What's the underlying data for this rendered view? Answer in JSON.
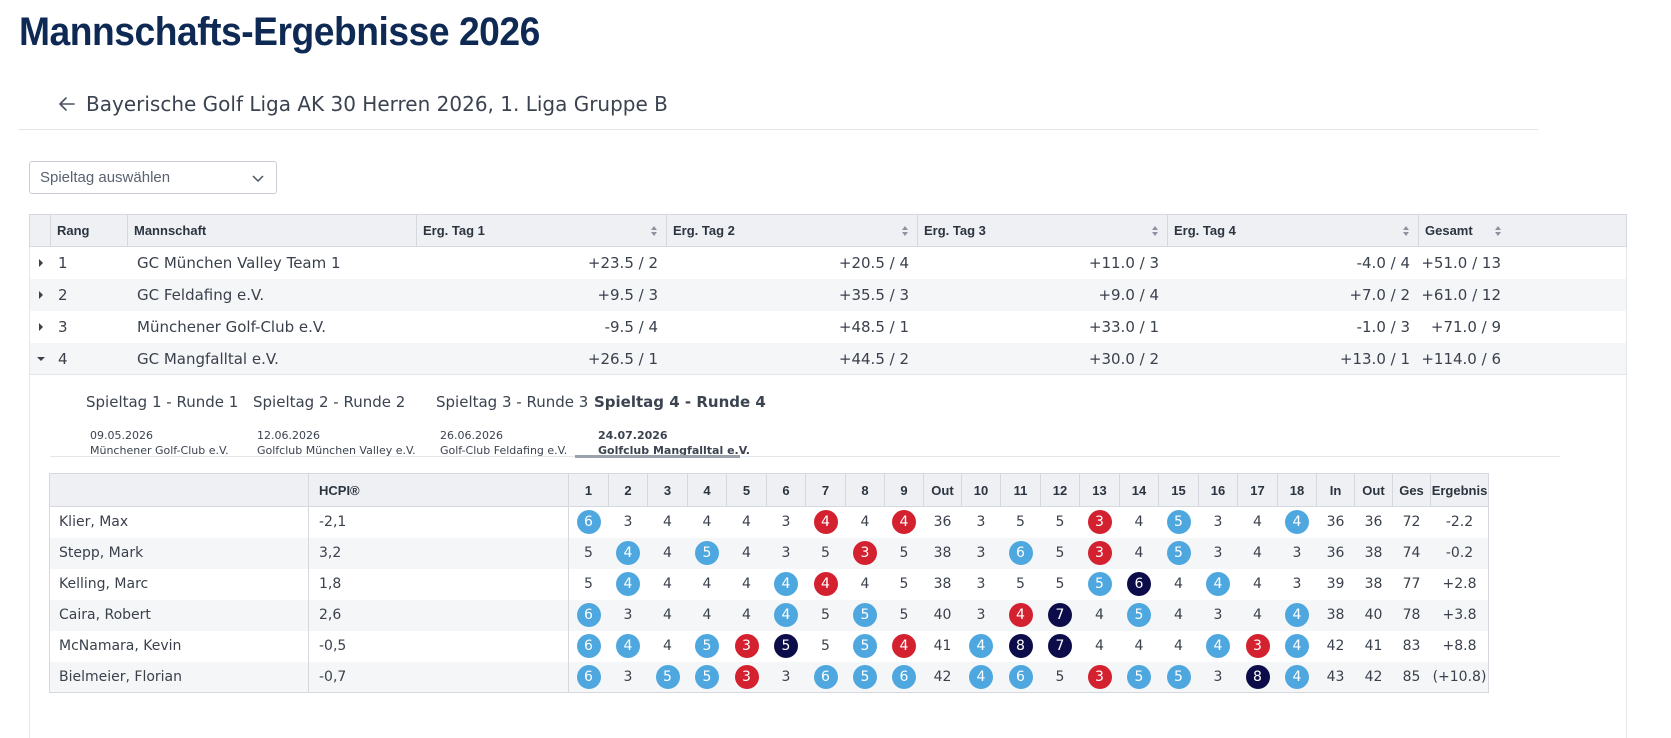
{
  "page": {
    "title": "Mannschafts-Ergebnisse 2026",
    "league": "Bayerische Golf Liga AK 30 Herren 2026, 1. Liga Gruppe B"
  },
  "select": {
    "placeholder": "Spieltag auswählen"
  },
  "table": {
    "headers": [
      "Rang",
      "Mannschaft",
      "Erg. Tag 1",
      "Erg. Tag 2",
      "Erg. Tag 3",
      "Erg. Tag 4",
      "Gesamt"
    ],
    "rows": [
      {
        "rank": "1",
        "team": "GC München Valley Team 1",
        "d1": "+23.5 / 2",
        "d2": "+20.5 / 4",
        "d3": "+11.0 / 3",
        "d4": "-4.0 / 4",
        "total": "+51.0 / 13",
        "expanded": false
      },
      {
        "rank": "2",
        "team": "GC Feldafing e.V.",
        "d1": "+9.5 / 3",
        "d2": "+35.5 / 3",
        "d3": "+9.0 / 4",
        "d4": "+7.0 / 2",
        "total": "+61.0 / 12",
        "expanded": false
      },
      {
        "rank": "3",
        "team": "Münchener Golf-Club e.V.",
        "d1": "-9.5 / 4",
        "d2": "+48.5 / 1",
        "d3": "+33.0 / 1",
        "d4": "-1.0 / 3",
        "total": "+71.0 / 9",
        "expanded": false
      },
      {
        "rank": "4",
        "team": "GC Mangfalltal e.V.",
        "d1": "+26.5 / 1",
        "d2": "+44.5 / 2",
        "d3": "+30.0 / 2",
        "d4": "+13.0 / 1",
        "total": "+114.0 / 6",
        "expanded": true
      }
    ]
  },
  "tabs": [
    {
      "label": "Spieltag 1 - Runde 1",
      "date": "09.05.2026",
      "venue": "Münchener Golf-Club e.V.",
      "active": false
    },
    {
      "label": "Spieltag 2 - Runde 2",
      "date": "12.06.2026",
      "venue": "Golfclub München Valley e.V.",
      "active": false
    },
    {
      "label": "Spieltag 3 - Runde 3",
      "date": "26.06.2026",
      "venue": "Golf-Club Feldafing e.V.",
      "active": false
    },
    {
      "label": "Spieltag 4 - Runde 4",
      "date": "24.07.2026",
      "venue": "Golfclub Mangfalltal e.V.",
      "active": true
    }
  ],
  "scorecard": {
    "headers": [
      "",
      "HCPI®",
      "1",
      "2",
      "3",
      "4",
      "5",
      "6",
      "7",
      "8",
      "9",
      "Out",
      "10",
      "11",
      "12",
      "13",
      "14",
      "15",
      "16",
      "17",
      "18",
      "In",
      "Out",
      "Ges",
      "Ergebnis"
    ],
    "legend": {
      "birdie_color": "#4ea8df",
      "bogey_color": "#d3212f",
      "double_color": "#0d0c4a"
    },
    "players": [
      {
        "name": "Klier, Max",
        "hcp": "-2,1",
        "holes": [
          [
            "6",
            "b"
          ],
          [
            "3",
            ""
          ],
          [
            "4",
            ""
          ],
          [
            "4",
            ""
          ],
          [
            "4",
            ""
          ],
          [
            "3",
            ""
          ],
          [
            "4",
            "r"
          ],
          [
            "4",
            ""
          ],
          [
            "4",
            "r"
          ]
        ],
        "out": "36",
        "holes2": [
          [
            "3",
            ""
          ],
          [
            "5",
            ""
          ],
          [
            "5",
            ""
          ],
          [
            "3",
            "r"
          ],
          [
            "4",
            ""
          ],
          [
            "5",
            "b"
          ],
          [
            "3",
            ""
          ],
          [
            "4",
            ""
          ],
          [
            "4",
            "b"
          ]
        ],
        "in": "36",
        "out2": "36",
        "total": "72",
        "result": "-2.2"
      },
      {
        "name": "Stepp, Mark",
        "hcp": "3,2",
        "holes": [
          [
            "5",
            ""
          ],
          [
            "4",
            "b"
          ],
          [
            "4",
            ""
          ],
          [
            "5",
            "b"
          ],
          [
            "4",
            ""
          ],
          [
            "3",
            ""
          ],
          [
            "5",
            ""
          ],
          [
            "3",
            "r"
          ],
          [
            "5",
            ""
          ]
        ],
        "out": "38",
        "holes2": [
          [
            "3",
            ""
          ],
          [
            "6",
            "b"
          ],
          [
            "5",
            ""
          ],
          [
            "3",
            "r"
          ],
          [
            "4",
            ""
          ],
          [
            "5",
            "b"
          ],
          [
            "3",
            ""
          ],
          [
            "4",
            ""
          ],
          [
            "3",
            ""
          ]
        ],
        "in": "36",
        "out2": "38",
        "total": "74",
        "result": "-0.2"
      },
      {
        "name": "Kelling, Marc",
        "hcp": "1,8",
        "holes": [
          [
            "5",
            ""
          ],
          [
            "4",
            "b"
          ],
          [
            "4",
            ""
          ],
          [
            "4",
            ""
          ],
          [
            "4",
            ""
          ],
          [
            "4",
            "b"
          ],
          [
            "4",
            "r"
          ],
          [
            "4",
            ""
          ],
          [
            "5",
            ""
          ]
        ],
        "out": "38",
        "holes2": [
          [
            "3",
            ""
          ],
          [
            "5",
            ""
          ],
          [
            "5",
            ""
          ],
          [
            "5",
            "b"
          ],
          [
            "6",
            "d"
          ],
          [
            "4",
            ""
          ],
          [
            "4",
            "b"
          ],
          [
            "4",
            ""
          ],
          [
            "3",
            ""
          ]
        ],
        "in": "39",
        "out2": "38",
        "total": "77",
        "result": "+2.8"
      },
      {
        "name": "Caira, Robert",
        "hcp": "2,6",
        "holes": [
          [
            "6",
            "b"
          ],
          [
            "3",
            ""
          ],
          [
            "4",
            ""
          ],
          [
            "4",
            ""
          ],
          [
            "4",
            ""
          ],
          [
            "4",
            "b"
          ],
          [
            "5",
            ""
          ],
          [
            "5",
            "b"
          ],
          [
            "5",
            ""
          ]
        ],
        "out": "40",
        "holes2": [
          [
            "3",
            ""
          ],
          [
            "4",
            "r"
          ],
          [
            "7",
            "d"
          ],
          [
            "4",
            ""
          ],
          [
            "5",
            "b"
          ],
          [
            "4",
            ""
          ],
          [
            "3",
            ""
          ],
          [
            "4",
            ""
          ],
          [
            "4",
            "b"
          ]
        ],
        "in": "38",
        "out2": "40",
        "total": "78",
        "result": "+3.8"
      },
      {
        "name": "McNamara, Kevin",
        "hcp": "-0,5",
        "holes": [
          [
            "6",
            "b"
          ],
          [
            "4",
            "b"
          ],
          [
            "4",
            ""
          ],
          [
            "5",
            "b"
          ],
          [
            "3",
            "r"
          ],
          [
            "5",
            "d"
          ],
          [
            "5",
            ""
          ],
          [
            "5",
            "b"
          ],
          [
            "4",
            "r"
          ]
        ],
        "out": "41",
        "holes2": [
          [
            "4",
            "b"
          ],
          [
            "8",
            "d"
          ],
          [
            "7",
            "d"
          ],
          [
            "4",
            ""
          ],
          [
            "4",
            ""
          ],
          [
            "4",
            ""
          ],
          [
            "4",
            "b"
          ],
          [
            "3",
            "r"
          ],
          [
            "4",
            "b"
          ]
        ],
        "in": "42",
        "out2": "41",
        "total": "83",
        "result": "+8.8"
      },
      {
        "name": "Bielmeier, Florian",
        "hcp": "-0,7",
        "holes": [
          [
            "6",
            "b"
          ],
          [
            "3",
            ""
          ],
          [
            "5",
            "b"
          ],
          [
            "5",
            "b"
          ],
          [
            "3",
            "r"
          ],
          [
            "3",
            ""
          ],
          [
            "6",
            "b"
          ],
          [
            "5",
            "b"
          ],
          [
            "6",
            "b"
          ]
        ],
        "out": "42",
        "holes2": [
          [
            "4",
            "b"
          ],
          [
            "6",
            "b"
          ],
          [
            "5",
            ""
          ],
          [
            "3",
            "r"
          ],
          [
            "5",
            "b"
          ],
          [
            "5",
            "b"
          ],
          [
            "3",
            ""
          ],
          [
            "8",
            "d"
          ],
          [
            "4",
            "b"
          ]
        ],
        "in": "43",
        "out2": "42",
        "total": "85",
        "result": "(+10.8)"
      }
    ]
  }
}
